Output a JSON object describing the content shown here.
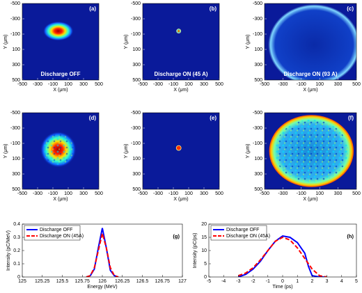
{
  "chart_data": [
    {
      "type": "image",
      "panel_label": "(a)",
      "annotation": "Discharge OFF",
      "xlabel": "X (μm)",
      "ylabel": "Y (μm)",
      "xlim": [
        -500,
        500
      ],
      "ylim": [
        500,
        -500
      ],
      "xticks": [
        -500,
        -300,
        -100,
        100,
        300,
        500
      ],
      "yticks": [
        -500,
        -300,
        -100,
        100,
        300,
        500
      ]
    },
    {
      "type": "image",
      "panel_label": "(b)",
      "annotation": "Discharge ON (45 A)",
      "xlabel": "X (μm)",
      "ylabel": "Y (μm)",
      "xlim": [
        -500,
        500
      ],
      "ylim": [
        500,
        -500
      ],
      "xticks": [
        -500,
        -300,
        -100,
        100,
        300,
        500
      ],
      "yticks": [
        -500,
        -300,
        -100,
        100,
        300,
        500
      ]
    },
    {
      "type": "image",
      "panel_label": "(c)",
      "annotation": "Discharge ON (93 A)",
      "xlabel": "X (μm)",
      "ylabel": "Y (μm)",
      "xlim": [
        -500,
        500
      ],
      "ylim": [
        500,
        -500
      ],
      "xticks": [
        -500,
        -300,
        -100,
        100,
        300,
        500
      ],
      "yticks": [
        -500,
        -300,
        -100,
        100,
        300,
        500
      ]
    },
    {
      "type": "image",
      "panel_label": "(d)",
      "xlabel": "X (μm)",
      "ylabel": "Y (μm)",
      "xlim": [
        -500,
        500
      ],
      "ylim": [
        500,
        -500
      ],
      "xticks": [
        -500,
        -300,
        -100,
        100,
        300,
        500
      ],
      "yticks": [
        -500,
        -300,
        -100,
        100,
        300,
        500
      ]
    },
    {
      "type": "image",
      "panel_label": "(e)",
      "xlabel": "X (μm)",
      "ylabel": "Y (μm)",
      "xlim": [
        -500,
        500
      ],
      "ylim": [
        500,
        -500
      ],
      "xticks": [
        -500,
        -300,
        -100,
        100,
        300,
        500
      ],
      "yticks": [
        -500,
        -300,
        -100,
        100,
        300,
        500
      ]
    },
    {
      "type": "image",
      "panel_label": "(f)",
      "xlabel": "X (μm)",
      "ylabel": "Y (μm)",
      "xlim": [
        -500,
        500
      ],
      "ylim": [
        500,
        -500
      ],
      "xticks": [
        -500,
        -300,
        -100,
        100,
        300,
        500
      ],
      "yticks": [
        -500,
        -300,
        -100,
        100,
        300,
        500
      ]
    },
    {
      "type": "line",
      "panel_label": "(g)",
      "xlabel": "Energy (MeV)",
      "ylabel": "Intensity (pC/MeV)",
      "xlim": [
        125,
        127
      ],
      "ylim": [
        0,
        0.4
      ],
      "xticks": [
        125,
        125.25,
        125.5,
        125.75,
        126,
        126.25,
        126.5,
        126.75,
        127
      ],
      "yticks": [
        0,
        0.1,
        0.2,
        0.3,
        0.4
      ],
      "legend": "upper left",
      "x": [
        125.8,
        125.85,
        125.9,
        125.95,
        126,
        126.05,
        126.1,
        126.15,
        126.2
      ],
      "series": [
        {
          "name": "Discharge OFF",
          "color": "#0000ff",
          "linestyle": "solid",
          "values": [
            0,
            0.01,
            0.06,
            0.22,
            0.37,
            0.22,
            0.05,
            0.01,
            0
          ]
        },
        {
          "name": "Discharge ON (45A)",
          "color": "#ff0000",
          "linestyle": "dashed",
          "values": [
            0,
            0.01,
            0.07,
            0.2,
            0.33,
            0.22,
            0.07,
            0.01,
            0
          ]
        }
      ]
    },
    {
      "type": "line",
      "panel_label": "(h)",
      "xlabel": "Time (ps)",
      "ylabel": "Intensity (pC/ps)",
      "xlim": [
        -5,
        5
      ],
      "ylim": [
        0,
        20
      ],
      "xticks": [
        -5,
        -4,
        -3,
        -2,
        -1,
        0,
        1,
        2,
        3,
        4,
        5
      ],
      "yticks": [
        0,
        5,
        10,
        15,
        20
      ],
      "legend": "upper left",
      "x": [
        -3,
        -2.5,
        -2,
        -1.5,
        -1,
        -0.5,
        0,
        0.5,
        1,
        1.5,
        1.75,
        2,
        2.5,
        3
      ],
      "series": [
        {
          "name": "Discharge OFF",
          "color": "#0000ff",
          "linestyle": "solid",
          "values": [
            0,
            1,
            3,
            6,
            10,
            13.5,
            15.5,
            15,
            13,
            9,
            4,
            0.5,
            0,
            0
          ]
        },
        {
          "name": "Discharge ON (45A)",
          "color": "#ff0000",
          "linestyle": "dashed",
          "values": [
            0.5,
            1.5,
            3.5,
            6.5,
            10,
            13.5,
            15,
            14,
            11,
            7,
            5,
            3,
            0.5,
            0
          ]
        }
      ]
    }
  ]
}
